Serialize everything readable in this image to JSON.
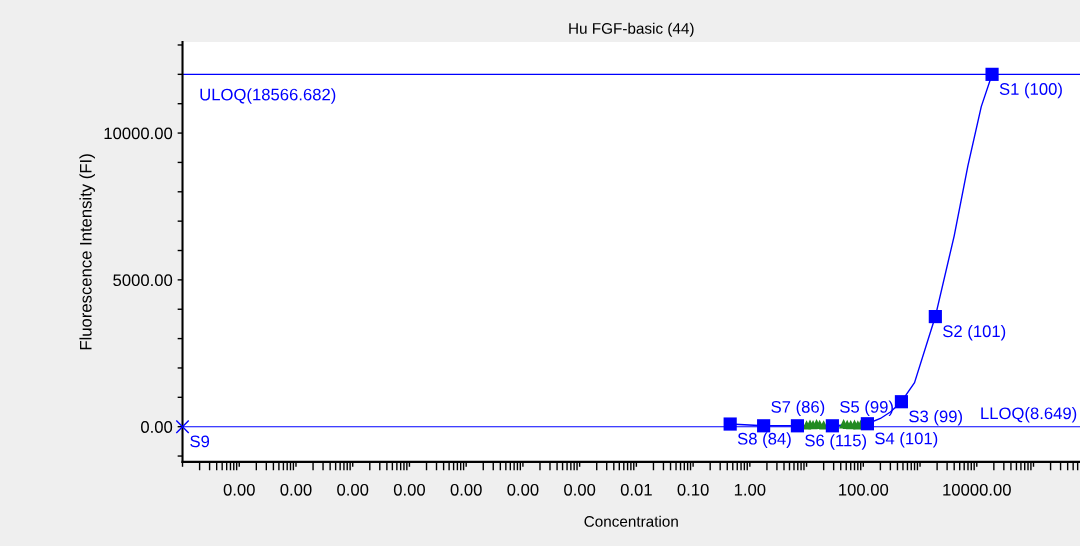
{
  "chart_data": {
    "type": "scatter",
    "title": "Hu FGF-basic (44)",
    "xlabel": "Concentration",
    "ylabel": "Fluorescence Intensity (FI)",
    "log": "x",
    "grid": false,
    "legend": false,
    "xlim": [
      1e-10,
      660000
    ],
    "ylim": [
      -1200,
      13100
    ],
    "xticks": [
      {
        "value": 1e-10,
        "label": null
      },
      {
        "value": 1e-09,
        "label": "0.00"
      },
      {
        "value": 1e-08,
        "label": "0.00"
      },
      {
        "value": 1e-07,
        "label": "0.00"
      },
      {
        "value": 1e-06,
        "label": "0.00"
      },
      {
        "value": 1e-05,
        "label": "0.00"
      },
      {
        "value": 0.0001,
        "label": "0.00"
      },
      {
        "value": 0.001,
        "label": "0.00"
      },
      {
        "value": 0.01,
        "label": "0.01"
      },
      {
        "value": 0.1,
        "label": "0.10"
      },
      {
        "value": 1,
        "label": "1.00"
      },
      {
        "value": 10,
        "label": null
      },
      {
        "value": 100,
        "label": "100.00"
      },
      {
        "value": 1000,
        "label": null
      },
      {
        "value": 10000,
        "label": "10000.00"
      },
      {
        "value": 100000,
        "label": null
      }
    ],
    "yticks": [
      {
        "value": -1000,
        "label": null
      },
      {
        "value": 0,
        "label": "0.00"
      },
      {
        "value": 1000,
        "label": null
      },
      {
        "value": 2000,
        "label": null
      },
      {
        "value": 3000,
        "label": null
      },
      {
        "value": 4000,
        "label": null
      },
      {
        "value": 5000,
        "label": "5000.00"
      },
      {
        "value": 6000,
        "label": null
      },
      {
        "value": 7000,
        "label": null
      },
      {
        "value": 8000,
        "label": null
      },
      {
        "value": 9000,
        "label": null
      },
      {
        "value": 10000,
        "label": "10000.00"
      },
      {
        "value": 11000,
        "label": null
      },
      {
        "value": 12000,
        "label": null
      },
      {
        "value": 13000,
        "label": null
      }
    ],
    "ref_lines": [
      {
        "axis": "y",
        "value": 12000,
        "label": "ULOQ(18566.682)",
        "color": "#0000ff"
      },
      {
        "axis": "y",
        "value": 0,
        "label": "LLOQ(8.649)",
        "color": "#0000ff"
      }
    ],
    "series": [
      {
        "type": "line",
        "color": "#0000ff",
        "marker": "none",
        "x": [
          0.45,
          1.75,
          6.9,
          28.5,
          118,
          200,
          300,
          470,
          800,
          1860,
          4000,
          7000,
          12000,
          18600
        ],
        "values": [
          90,
          30,
          30,
          30,
          100,
          280,
          500,
          850,
          1500,
          3750,
          6500,
          8900,
          10900,
          12000
        ]
      },
      {
        "color": "#228b22",
        "marker": "triangle",
        "x": [
          10,
          11.5,
          13,
          15,
          17,
          20,
          23,
          38,
          45,
          52,
          60,
          70,
          80,
          90
        ],
        "values": [
          60,
          90,
          70,
          100,
          80,
          60,
          null,
          null,
          100,
          80,
          70,
          90,
          60,
          80
        ]
      },
      {
        "color": "#0000ff",
        "marker": "square",
        "x": [
          18600,
          1860,
          470,
          118,
          28.5,
          6.9,
          1.75,
          0.45
        ],
        "values": [
          12000,
          3750,
          850,
          100,
          30,
          30,
          30,
          90
        ]
      },
      {
        "color": "#0000ff",
        "marker": "cross",
        "x": [
          1e-10
        ],
        "values": [
          0
        ]
      }
    ],
    "annotations": [
      {
        "text": "S1 (100)",
        "x": 18600,
        "y": 12000
      },
      {
        "text": "S2 (101)",
        "x": 1860,
        "y": 3750
      },
      {
        "text": "S3 (99)",
        "x": 470,
        "y": 850
      },
      {
        "text": "S4 (101)",
        "x": 118,
        "y": 100
      },
      {
        "text": "S5 (99)",
        "x": 28.5,
        "y": 30
      },
      {
        "text": "S6 (115)",
        "x": 6.9,
        "y": 30
      },
      {
        "text": "S7 (86)",
        "x": 1.75,
        "y": 30
      },
      {
        "text": "S8 (84)",
        "x": 0.45,
        "y": 90
      },
      {
        "text": "S9",
        "x": 1e-10,
        "y": 0
      }
    ]
  }
}
